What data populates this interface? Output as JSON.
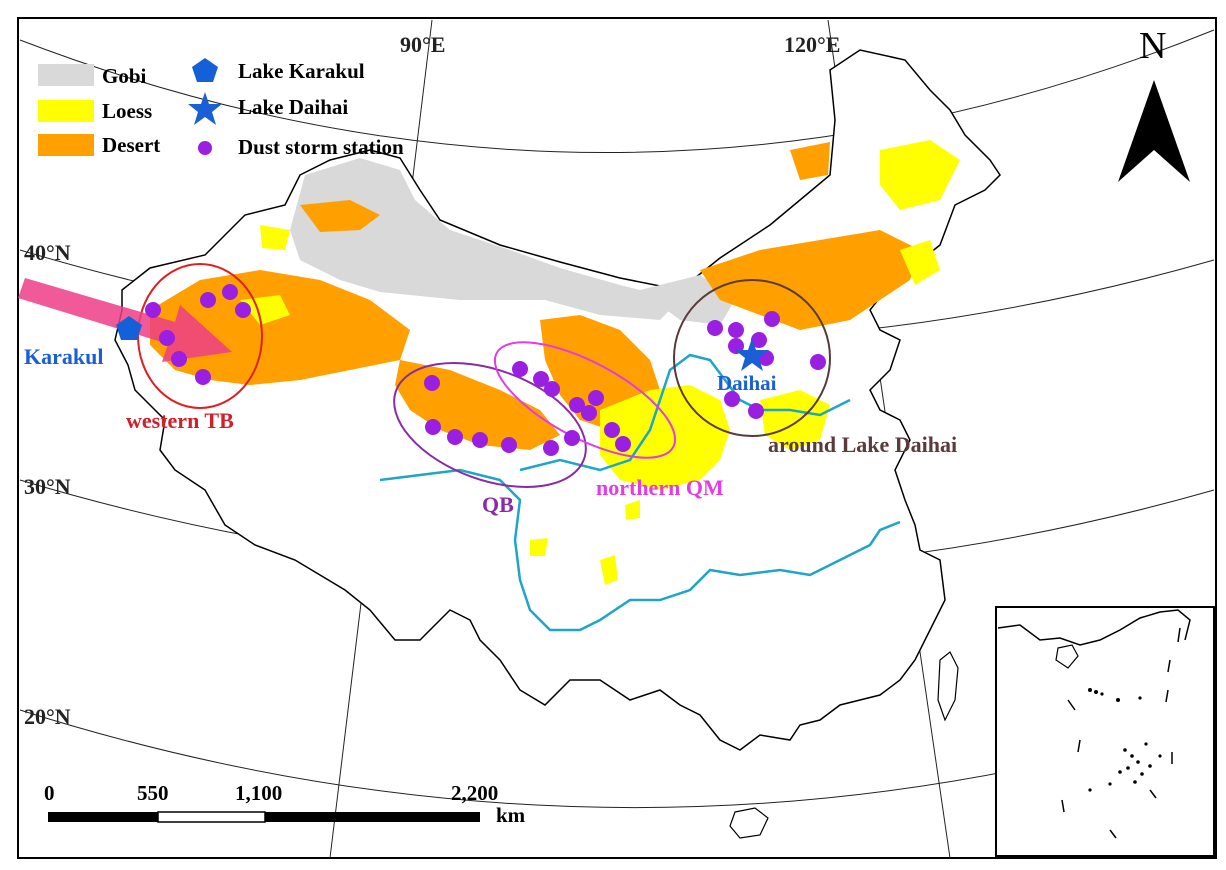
{
  "colors": {
    "gobi": "#d9d9d9",
    "loess": "#ffff00",
    "desert": "#ff9f00",
    "dust_station": "#9b1fe0",
    "lake_karakul": "#1460d8",
    "lake_daihai": "#1a5fd6",
    "river": "#1ea5c8",
    "arrow": "#ee3d86",
    "western_tb_ring": "#e02020",
    "qb_ring": "#8a2aa8",
    "northern_qm_ring": "#e23ce2",
    "daihai_ring": "#5a3a3a",
    "label_red": "#d0202a",
    "label_purple": "#8a2aa8",
    "label_magenta": "#e23ce2",
    "label_brown": "#5a3a3a",
    "label_blue": "#1a5fd6"
  },
  "legend": {
    "gobi": "Gobi",
    "loess": "Loess",
    "desert": "Desert",
    "lake_karakul": "Lake Karakul",
    "lake_daihai": "Lake Daihai",
    "dust_station": "Dust storm station"
  },
  "graticule": {
    "lon_90": "90°E",
    "lon_120": "120°E",
    "lat_40": "40°N",
    "lat_30": "30°N",
    "lat_20": "20°N"
  },
  "north_arrow": {
    "label": "N",
    "icon": "north-arrow-icon"
  },
  "regions": {
    "western_tb": "western  TB",
    "qb": "QB",
    "northern_qm": "northern QM",
    "around_daihai": "around  Lake Daihai"
  },
  "places": {
    "karakul": "Karakul",
    "daihai": "Daihai"
  },
  "scale_bar": {
    "ticks": [
      "0",
      "550",
      "1,100",
      "2,200"
    ],
    "unit": "km"
  }
}
